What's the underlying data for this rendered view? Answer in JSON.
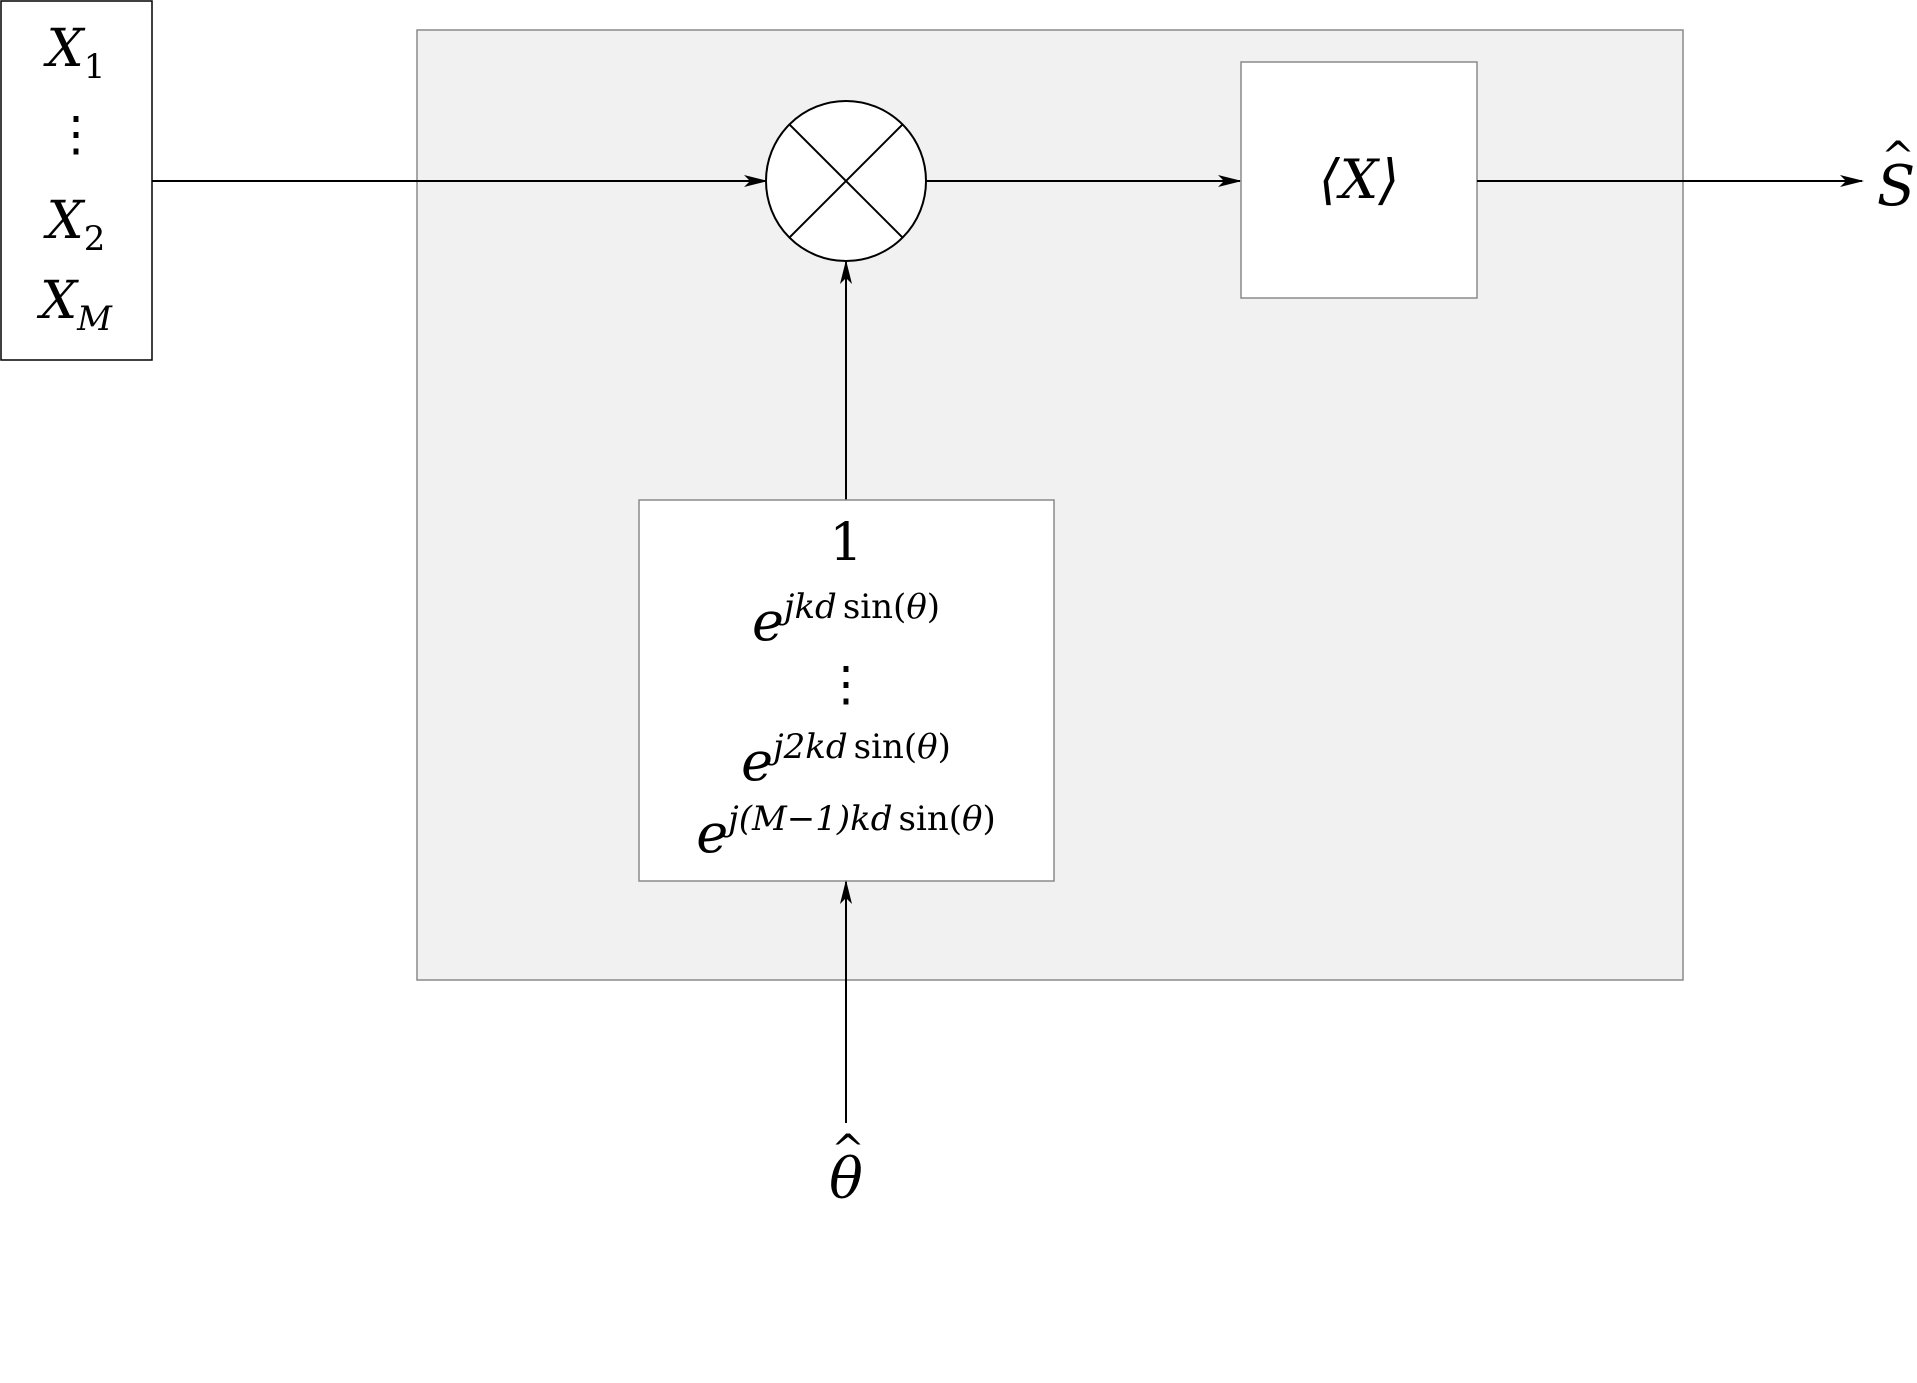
{
  "input_vector": {
    "rows": [
      {
        "base": "X",
        "sub": "1"
      },
      {
        "base": "⋮",
        "sub": ""
      },
      {
        "base": "X",
        "sub": "2"
      },
      {
        "base": "X",
        "sub": "M"
      }
    ]
  },
  "average_block": {
    "label": "⟨X⟩"
  },
  "output": {
    "base": "S",
    "hat": "^"
  },
  "angle_input": {
    "base": "θ",
    "hat": "^"
  },
  "steering_vector": {
    "first": "1",
    "dots": "⋮",
    "rows": [
      {
        "base": "e",
        "exp_pre": "jkd",
        "exp_fn": "sin(",
        "exp_theta": "θ",
        "exp_post": ")"
      },
      {
        "base": "e",
        "exp_pre": "j2kd",
        "exp_fn": "sin(",
        "exp_theta": "θ",
        "exp_post": ")"
      },
      {
        "base": "e",
        "exp_pre": "j(M−1)kd",
        "exp_fn": "sin(",
        "exp_theta": "θ",
        "exp_post": ")"
      }
    ]
  },
  "colors": {
    "enclosure_fill": "#f1f1f1",
    "enclosure_stroke": "#8a8a8a",
    "box_fill": "#ffffff",
    "line": "#000000"
  },
  "icons": {
    "multiplier": "circle-times-icon",
    "arrowhead": "arrowhead-icon"
  }
}
